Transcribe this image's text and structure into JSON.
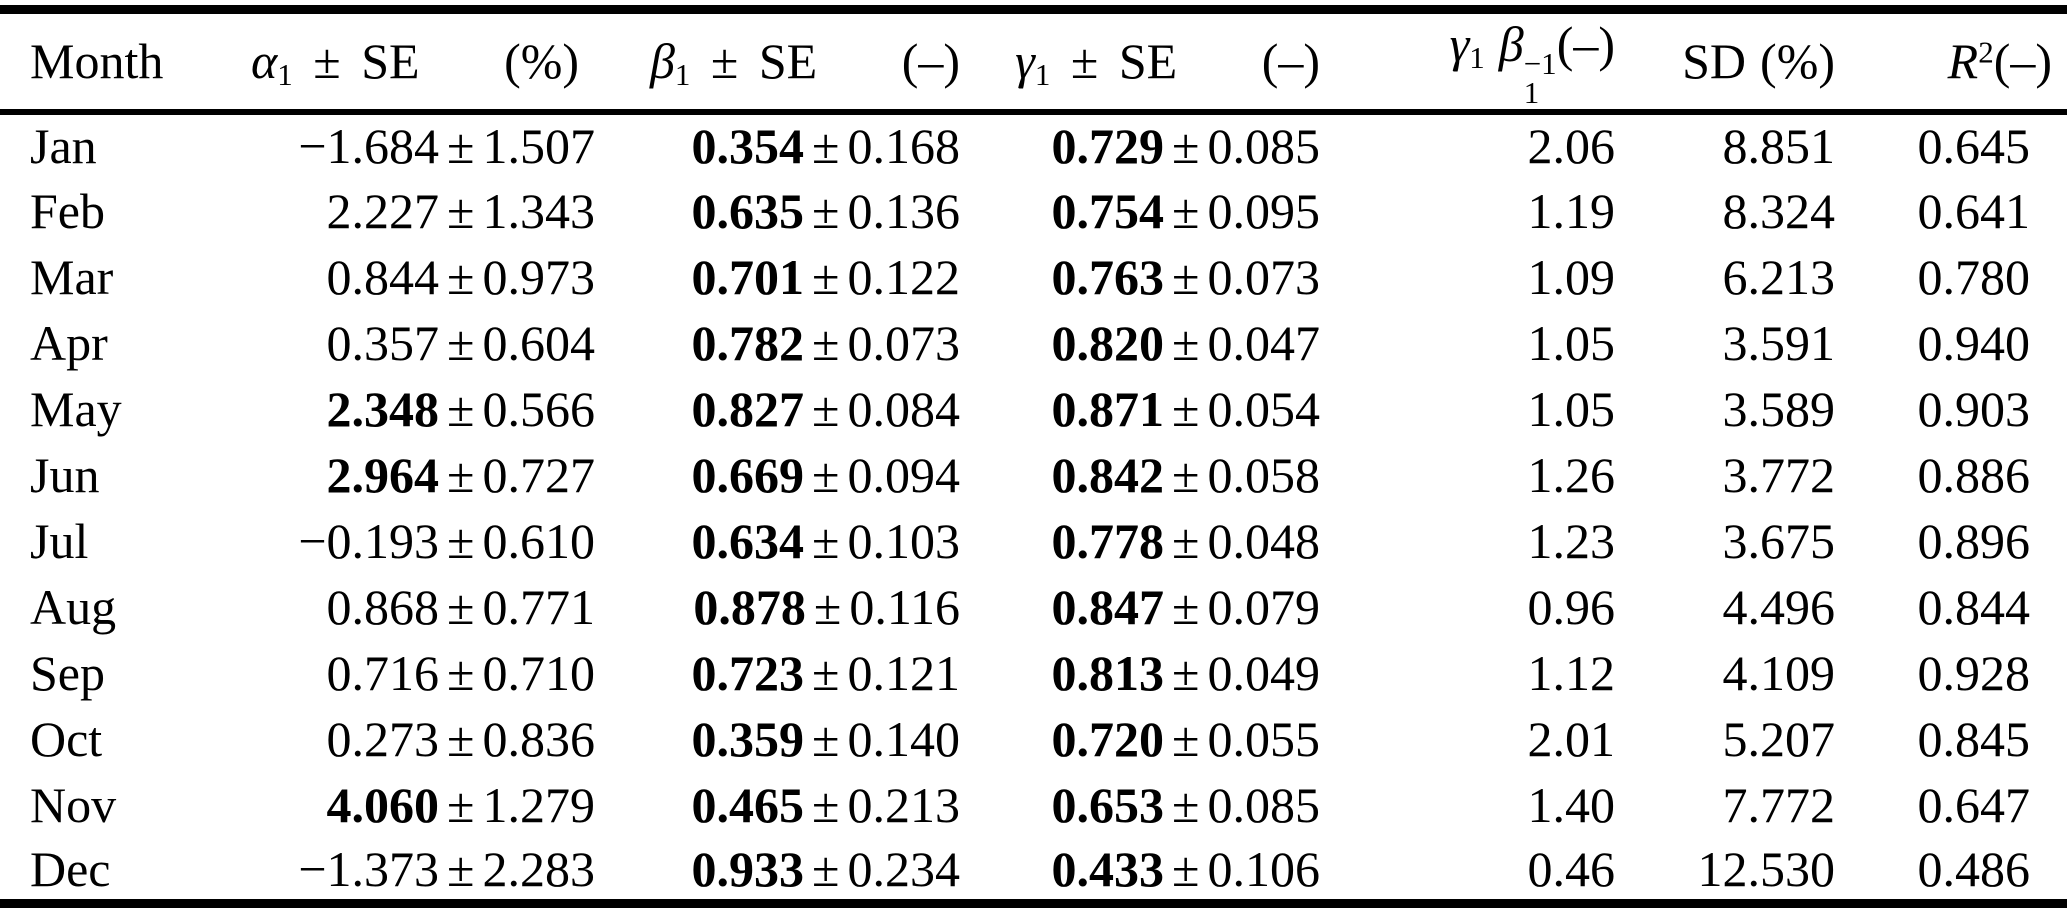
{
  "page": {
    "background_color": "#ffffff",
    "text_color": "#000000"
  },
  "table": {
    "header": {
      "month": "Month",
      "alpha": {
        "symbol": "α",
        "subscript": "1",
        "pm": "±",
        "se": "SE",
        "unit": "(%)"
      },
      "beta": {
        "symbol": "β",
        "subscript": "1",
        "pm": "±",
        "se": "SE",
        "unit": "(–)"
      },
      "gamma": {
        "symbol": "γ",
        "subscript": "1",
        "pm": "±",
        "se": "SE",
        "unit": "(–)"
      },
      "ratio": {
        "symbol1": "γ",
        "subscript1": "1",
        "symbol2": "β",
        "subscript2": "1",
        "superscript2": "−1",
        "unit": "(–)"
      },
      "sd": {
        "label": "SD",
        "unit": "(%)"
      },
      "r2": {
        "symbol": "R",
        "superscript": "2",
        "unit": "(–)"
      }
    },
    "rows": [
      {
        "month": "Jan",
        "alpha": "−1.684",
        "alpha_se": "1.507",
        "alpha_bold": false,
        "beta": "0.354",
        "beta_se": "0.168",
        "beta_bold": true,
        "gamma": "0.729",
        "gamma_se": "0.085",
        "gamma_bold": true,
        "ratio": "2.06",
        "sd": "8.851",
        "r2": "0.645"
      },
      {
        "month": "Feb",
        "alpha": "2.227",
        "alpha_se": "1.343",
        "alpha_bold": false,
        "beta": "0.635",
        "beta_se": "0.136",
        "beta_bold": true,
        "gamma": "0.754",
        "gamma_se": "0.095",
        "gamma_bold": true,
        "ratio": "1.19",
        "sd": "8.324",
        "r2": "0.641"
      },
      {
        "month": "Mar",
        "alpha": "0.844",
        "alpha_se": "0.973",
        "alpha_bold": false,
        "beta": "0.701",
        "beta_se": "0.122",
        "beta_bold": true,
        "gamma": "0.763",
        "gamma_se": "0.073",
        "gamma_bold": true,
        "ratio": "1.09",
        "sd": "6.213",
        "r2": "0.780"
      },
      {
        "month": "Apr",
        "alpha": "0.357",
        "alpha_se": "0.604",
        "alpha_bold": false,
        "beta": "0.782",
        "beta_se": "0.073",
        "beta_bold": true,
        "gamma": "0.820",
        "gamma_se": "0.047",
        "gamma_bold": true,
        "ratio": "1.05",
        "sd": "3.591",
        "r2": "0.940"
      },
      {
        "month": "May",
        "alpha": "2.348",
        "alpha_se": "0.566",
        "alpha_bold": true,
        "beta": "0.827",
        "beta_se": "0.084",
        "beta_bold": true,
        "gamma": "0.871",
        "gamma_se": "0.054",
        "gamma_bold": true,
        "ratio": "1.05",
        "sd": "3.589",
        "r2": "0.903"
      },
      {
        "month": "Jun",
        "alpha": "2.964",
        "alpha_se": "0.727",
        "alpha_bold": true,
        "beta": "0.669",
        "beta_se": "0.094",
        "beta_bold": true,
        "gamma": "0.842",
        "gamma_se": "0.058",
        "gamma_bold": true,
        "ratio": "1.26",
        "sd": "3.772",
        "r2": "0.886"
      },
      {
        "month": "Jul",
        "alpha": "−0.193",
        "alpha_se": "0.610",
        "alpha_bold": false,
        "beta": "0.634",
        "beta_se": "0.103",
        "beta_bold": true,
        "gamma": "0.778",
        "gamma_se": "0.048",
        "gamma_bold": true,
        "ratio": "1.23",
        "sd": "3.675",
        "r2": "0.896"
      },
      {
        "month": "Aug",
        "alpha": "0.868",
        "alpha_se": "0.771",
        "alpha_bold": false,
        "beta": "0.878",
        "beta_se": "0.116",
        "beta_bold": true,
        "gamma": "0.847",
        "gamma_se": "0.079",
        "gamma_bold": true,
        "ratio": "0.96",
        "sd": "4.496",
        "r2": "0.844"
      },
      {
        "month": "Sep",
        "alpha": "0.716",
        "alpha_se": "0.710",
        "alpha_bold": false,
        "beta": "0.723",
        "beta_se": "0.121",
        "beta_bold": true,
        "gamma": "0.813",
        "gamma_se": "0.049",
        "gamma_bold": true,
        "ratio": "1.12",
        "sd": "4.109",
        "r2": "0.928"
      },
      {
        "month": "Oct",
        "alpha": "0.273",
        "alpha_se": "0.836",
        "alpha_bold": false,
        "beta": "0.359",
        "beta_se": "0.140",
        "beta_bold": true,
        "gamma": "0.720",
        "gamma_se": "0.055",
        "gamma_bold": true,
        "ratio": "2.01",
        "sd": "5.207",
        "r2": "0.845"
      },
      {
        "month": "Nov",
        "alpha": "4.060",
        "alpha_se": "1.279",
        "alpha_bold": true,
        "beta": "0.465",
        "beta_se": "0.213",
        "beta_bold": true,
        "gamma": "0.653",
        "gamma_se": "0.085",
        "gamma_bold": true,
        "ratio": "1.40",
        "sd": "7.772",
        "r2": "0.647"
      },
      {
        "month": "Dec",
        "alpha": "−1.373",
        "alpha_se": "2.283",
        "alpha_bold": false,
        "beta": "0.933",
        "beta_se": "0.234",
        "beta_bold": true,
        "gamma": "0.433",
        "gamma_se": "0.106",
        "gamma_bold": true,
        "ratio": "0.46",
        "sd": "12.530",
        "r2": "0.486"
      }
    ]
  }
}
